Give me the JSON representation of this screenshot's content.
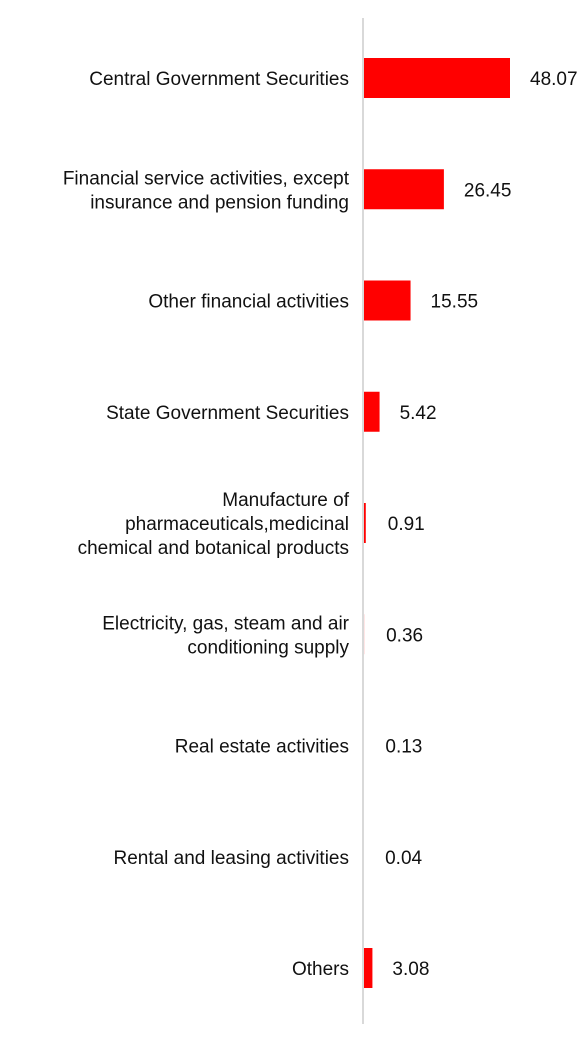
{
  "chart_data": {
    "type": "bar",
    "orientation": "horizontal",
    "categories": [
      "Central Government Securities",
      "Financial service activities, except insurance and pension funding",
      "Other financial activities",
      "State Government Securities",
      "Manufacture of pharmaceuticals,medicinal chemical and botanical products",
      "Electricity, gas, steam and air conditioning supply",
      "Real estate activities",
      "Rental and leasing activities",
      "Others"
    ],
    "category_lines": [
      [
        "Central Government Securities"
      ],
      [
        "Financial service activities, except",
        "insurance and pension funding"
      ],
      [
        "Other financial activities"
      ],
      [
        "State Government Securities"
      ],
      [
        "Manufacture of",
        "pharmaceuticals,medicinal",
        "chemical and botanical products"
      ],
      [
        "Electricity, gas, steam and air",
        "conditioning supply"
      ],
      [
        "Real estate activities"
      ],
      [
        "Rental and leasing activities"
      ],
      [
        "Others"
      ]
    ],
    "values": [
      48.07,
      26.45,
      15.55,
      5.42,
      0.91,
      0.36,
      0.13,
      0.04,
      3.08
    ],
    "value_labels": [
      "48.07",
      "26.45",
      "15.55",
      "5.42",
      "0.91",
      "0.36",
      "0.13",
      "0.04",
      "3.08"
    ],
    "title": "",
    "xlabel": "",
    "ylabel": "",
    "xlim": [
      0,
      50
    ],
    "grid": false,
    "legend": "none",
    "bar_color": "#ff0000",
    "axis_color": "#d9d9d9"
  }
}
